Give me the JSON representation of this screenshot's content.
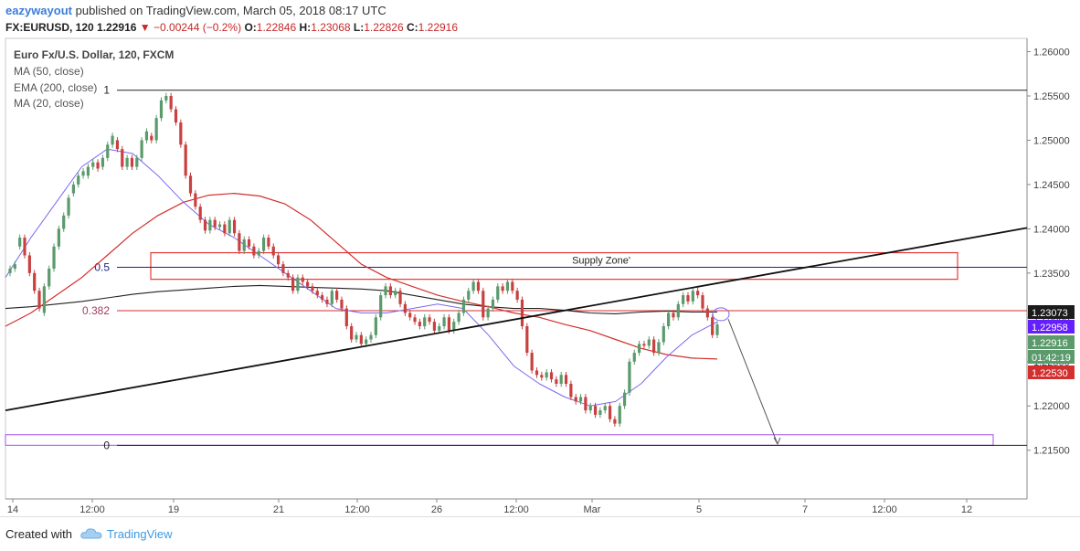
{
  "header": {
    "user": "eazywayout",
    "published": "published on TradingView.com, March 05, 2018 08:17 UTC",
    "symbol": "FX:EURUSD, 120",
    "last": "1.22916",
    "change": "−0.00244 (−0.2%)",
    "o_label": "O:",
    "o": "1.22846",
    "h_label": "H:",
    "h": "1.23068",
    "l_label": "L:",
    "l": "1.22826",
    "c_label": "C:",
    "c": "1.22916"
  },
  "legend": {
    "title": "Euro Fx/U.S. Dollar, 120, FXCM",
    "ma50": "MA (50, close)",
    "ema200": "EMA (200, close)",
    "ma20": "MA (20, close)"
  },
  "footer": {
    "created_with": "Created with",
    "brand": "TradingView"
  },
  "colors": {
    "up": "#5a9a6b",
    "down": "#c94040",
    "ma50": "#222222",
    "ema200": "#d32f2f",
    "ma20": "#7b68ee",
    "fib_blue": "#1a237e",
    "fib_red": "#d32f2f",
    "zone": "#e53935",
    "target_box": "#b36ff0"
  },
  "chart_data": {
    "type": "candlestick",
    "ylim": [
      1.2095,
      1.2615
    ],
    "yticks": [
      "1.26000",
      "1.25500",
      "1.25000",
      "1.24500",
      "1.24000",
      "1.23500",
      "1.23000",
      "1.22500",
      "1.22000",
      "1.21500"
    ],
    "xticks": [
      "14",
      "12:00",
      "19",
      "21",
      "12:00",
      "26",
      "12:00",
      "Mar",
      "5",
      "7",
      "12:00",
      "12"
    ],
    "price_tags": [
      {
        "value": 1.23073,
        "label": "1.23073",
        "color": "#1b1b1b"
      },
      {
        "value": 1.22958,
        "label": "1.22958",
        "color": "#651fff"
      },
      {
        "value": 1.22916,
        "label": "1.22916",
        "color": "#5a9a6b"
      },
      {
        "value": 1.22916,
        "label": "01:42:19",
        "color": "#5a9a6b"
      },
      {
        "value": 1.2253,
        "label": "1.22530",
        "color": "#d32f2f"
      }
    ],
    "fib_levels": [
      {
        "ratio": "1",
        "value": 1.25565
      },
      {
        "ratio": "0.5",
        "value": 1.23565
      },
      {
        "ratio": "0.382",
        "value": 1.23075
      },
      {
        "ratio": "0",
        "value": 1.21555
      }
    ],
    "supply_zone": {
      "label": "Supply Zone'",
      "top": 1.2373,
      "bottom": 1.2343
    },
    "target_zone": {
      "top": 1.21675,
      "bottom": 1.21555
    },
    "trendline": {
      "start": 1.2195,
      "end": 1.2401
    },
    "projection_end": 1.2157,
    "candles": [
      [
        1.235,
        1.2355
      ],
      [
        1.2355,
        1.236
      ],
      [
        1.238,
        1.239
      ],
      [
        1.239,
        1.237
      ],
      [
        1.237,
        1.235
      ],
      [
        1.235,
        1.233
      ],
      [
        1.233,
        1.231
      ],
      [
        1.2305,
        1.2335
      ],
      [
        1.2335,
        1.2355
      ],
      [
        1.2355,
        1.238
      ],
      [
        1.238,
        1.24
      ],
      [
        1.24,
        1.2415
      ],
      [
        1.2415,
        1.2435
      ],
      [
        1.244,
        1.245
      ],
      [
        1.245,
        1.246
      ],
      [
        1.246,
        1.2465
      ],
      [
        1.246,
        1.247
      ],
      [
        1.247,
        1.2475
      ],
      [
        1.2475,
        1.2468
      ],
      [
        1.247,
        1.248
      ],
      [
        1.248,
        1.2495
      ],
      [
        1.2495,
        1.2505
      ],
      [
        1.25,
        1.249
      ],
      [
        1.249,
        1.247
      ],
      [
        1.247,
        1.248
      ],
      [
        1.248,
        1.247
      ],
      [
        1.247,
        1.248
      ],
      [
        1.248,
        1.25
      ],
      [
        1.25,
        1.251
      ],
      [
        1.2505,
        1.25
      ],
      [
        1.25,
        1.2525
      ],
      [
        1.2525,
        1.2545
      ],
      [
        1.2545,
        1.255
      ],
      [
        1.255,
        1.2535
      ],
      [
        1.2535,
        1.252
      ],
      [
        1.252,
        1.2495
      ],
      [
        1.2495,
        1.246
      ],
      [
        1.246,
        1.244
      ],
      [
        1.244,
        1.2425
      ],
      [
        1.2425,
        1.241
      ],
      [
        1.241,
        1.2398
      ],
      [
        1.2398,
        1.241
      ],
      [
        1.241,
        1.2402
      ],
      [
        1.2402,
        1.2405
      ],
      [
        1.2405,
        1.2395
      ],
      [
        1.2395,
        1.241
      ],
      [
        1.241,
        1.2395
      ],
      [
        1.2395,
        1.2375
      ],
      [
        1.2375,
        1.2388
      ],
      [
        1.2388,
        1.238
      ],
      [
        1.238,
        1.237
      ],
      [
        1.237,
        1.2375
      ],
      [
        1.2375,
        1.239
      ],
      [
        1.239,
        1.238
      ],
      [
        1.238,
        1.237
      ],
      [
        1.237,
        1.236
      ],
      [
        1.236,
        1.235
      ],
      [
        1.235,
        1.2345
      ],
      [
        1.2345,
        1.233
      ],
      [
        1.233,
        1.2345
      ],
      [
        1.2345,
        1.234
      ],
      [
        1.234,
        1.2335
      ],
      [
        1.2335,
        1.233
      ],
      [
        1.233,
        1.2325
      ],
      [
        1.2325,
        1.232
      ],
      [
        1.232,
        1.2315
      ],
      [
        1.2315,
        1.233
      ],
      [
        1.233,
        1.232
      ],
      [
        1.232,
        1.231
      ],
      [
        1.231,
        1.229
      ],
      [
        1.229,
        1.2275
      ],
      [
        1.2275,
        1.228
      ],
      [
        1.228,
        1.227
      ],
      [
        1.227,
        1.2275
      ],
      [
        1.2275,
        1.228
      ],
      [
        1.228,
        1.23
      ],
      [
        1.23,
        1.2325
      ],
      [
        1.2325,
        1.2335
      ],
      [
        1.2335,
        1.2325
      ],
      [
        1.2325,
        1.233
      ],
      [
        1.233,
        1.2315
      ],
      [
        1.2315,
        1.2305
      ],
      [
        1.2305,
        1.23
      ],
      [
        1.23,
        1.2295
      ],
      [
        1.2295,
        1.229
      ],
      [
        1.229,
        1.23
      ],
      [
        1.23,
        1.2295
      ],
      [
        1.2295,
        1.2285
      ],
      [
        1.2285,
        1.229
      ],
      [
        1.229,
        1.23
      ],
      [
        1.23,
        1.2285
      ],
      [
        1.2285,
        1.2295
      ],
      [
        1.2295,
        1.2305
      ],
      [
        1.2305,
        1.232
      ],
      [
        1.232,
        1.233
      ],
      [
        1.233,
        1.234
      ],
      [
        1.234,
        1.233
      ],
      [
        1.233,
        1.23
      ],
      [
        1.23,
        1.231
      ],
      [
        1.231,
        1.232
      ],
      [
        1.232,
        1.2335
      ],
      [
        1.2335,
        1.233
      ],
      [
        1.233,
        1.234
      ],
      [
        1.234,
        1.233
      ],
      [
        1.233,
        1.232
      ],
      [
        1.232,
        1.229
      ],
      [
        1.229,
        1.226
      ],
      [
        1.226,
        1.224
      ],
      [
        1.224,
        1.2235
      ],
      [
        1.2235,
        1.2232
      ],
      [
        1.2232,
        1.2238
      ],
      [
        1.2238,
        1.223
      ],
      [
        1.223,
        1.2225
      ],
      [
        1.2225,
        1.2235
      ],
      [
        1.2235,
        1.2225
      ],
      [
        1.2225,
        1.221
      ],
      [
        1.221,
        1.2205
      ],
      [
        1.2205,
        1.221
      ],
      [
        1.221,
        1.2195
      ],
      [
        1.2195,
        1.22
      ],
      [
        1.22,
        1.219
      ],
      [
        1.219,
        1.2195
      ],
      [
        1.2195,
        1.22
      ],
      [
        1.22,
        1.2185
      ],
      [
        1.2185,
        1.218
      ],
      [
        1.218,
        1.22
      ],
      [
        1.22,
        1.2215
      ],
      [
        1.2215,
        1.225
      ],
      [
        1.225,
        1.226
      ],
      [
        1.226,
        1.227
      ],
      [
        1.227,
        1.2268
      ],
      [
        1.2268,
        1.2275
      ],
      [
        1.2275,
        1.226
      ],
      [
        1.226,
        1.2272
      ],
      [
        1.2272,
        1.229
      ],
      [
        1.229,
        1.2305
      ],
      [
        1.2305,
        1.23
      ],
      [
        1.23,
        1.2315
      ],
      [
        1.2315,
        1.2325
      ],
      [
        1.2325,
        1.2318
      ],
      [
        1.2318,
        1.233
      ],
      [
        1.233,
        1.2325
      ],
      [
        1.2325,
        1.231
      ],
      [
        1.231,
        1.23
      ],
      [
        1.23,
        1.228
      ],
      [
        1.228,
        1.2292
      ]
    ],
    "ma50": [
      1.231,
      1.2312,
      1.2315,
      1.2318,
      1.2322,
      1.2326,
      1.2329,
      1.2331,
      1.2333,
      1.2335,
      1.2336,
      1.2335,
      1.2334,
      1.2333,
      1.2332,
      1.233,
      1.2325,
      1.232,
      1.2315,
      1.2312,
      1.231,
      1.231,
      1.2308,
      1.2305,
      1.2304,
      1.2306,
      1.2307,
      1.2306,
      1.2306
    ],
    "ema200": [
      1.229,
      1.2305,
      1.2325,
      1.2345,
      1.237,
      1.2395,
      1.2415,
      1.243,
      1.2438,
      1.244,
      1.2437,
      1.2428,
      1.241,
      1.2385,
      1.236,
      1.2345,
      1.2335,
      1.2325,
      1.2318,
      1.2312,
      1.2305,
      1.23,
      1.2292,
      1.2285,
      1.2275,
      1.2265,
      1.2258,
      1.2254,
      1.2253
    ],
    "ma20": [
      1.2345,
      1.239,
      1.243,
      1.247,
      1.249,
      1.2485,
      1.246,
      1.243,
      1.2405,
      1.239,
      1.237,
      1.235,
      1.233,
      1.231,
      1.2305,
      1.2305,
      1.231,
      1.2315,
      1.231,
      1.228,
      1.2245,
      1.2225,
      1.221,
      1.22,
      1.2205,
      1.2225,
      1.2255,
      1.228,
      1.2295
    ]
  }
}
